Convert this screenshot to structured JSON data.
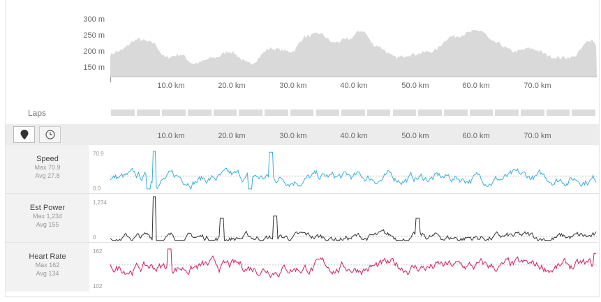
{
  "elevation": {
    "y_ticks": [
      "300 m",
      "250 m",
      "200 m",
      "150 m"
    ],
    "x_ticks": [
      "10.0 km",
      "20.0 km",
      "30.0 km",
      "40.0 km",
      "50.0 km",
      "60.0 km",
      "70.0 km"
    ],
    "color": "#d9d9d9"
  },
  "laps": {
    "label": "Laps",
    "count": 19
  },
  "toolbar": {
    "distance_icon": "map-pin-icon",
    "time_icon": "clock-icon"
  },
  "streams": {
    "x_ticks": [
      "10.0 km",
      "20.0 km",
      "30.0 km",
      "40.0 km",
      "50.0 km",
      "60.0 km",
      "70.0 km"
    ],
    "speed": {
      "name": "Speed",
      "max_label": "Max 70.9",
      "avg_label": "Avg 27.8",
      "top_tick": "70.9",
      "bottom_tick": "0.0",
      "color": "#3aaed8"
    },
    "power": {
      "name": "Est Power",
      "max_label": "Max 1,234",
      "avg_label": "Avg 155",
      "top_tick": "1,234",
      "bottom_tick": "0",
      "color": "#333333"
    },
    "heart": {
      "name": "Heart Rate",
      "max_label": "Max 162",
      "avg_label": "Avg 134",
      "top_tick": "162",
      "bottom_tick": "102",
      "color": "#cc1f6a"
    }
  }
}
